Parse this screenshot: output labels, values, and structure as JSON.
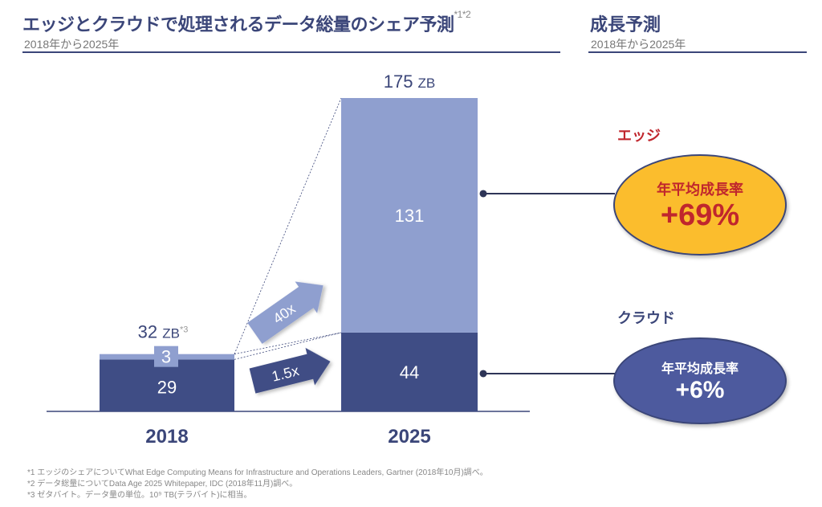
{
  "header": {
    "title": "エッジとクラウドで処理されるデータ総量のシェア予測",
    "title_sup": "*1*2",
    "subtitle": "2018年から2025年",
    "right_title": "成長予測",
    "right_subtitle": "2018年から2025年"
  },
  "chart_data": {
    "type": "bar",
    "stacked": true,
    "categories": [
      "2018",
      "2025"
    ],
    "series": [
      {
        "name": "クラウド",
        "values": [
          29,
          44
        ],
        "color": "#3f4d85"
      },
      {
        "name": "エッジ",
        "values": [
          3,
          131
        ],
        "color": "#8f9fcf"
      }
    ],
    "totals": [
      "32",
      "175"
    ],
    "unit": "ZB",
    "total_sup": "*3",
    "growth_arrows": [
      {
        "label": "40x",
        "series": "エッジ"
      },
      {
        "label": "1.5x",
        "series": "クラウド"
      }
    ]
  },
  "growth": {
    "edge": {
      "label": "エッジ",
      "cagr_label": "年平均成長率",
      "cagr_value": "+69%",
      "color": "#fbbd2d"
    },
    "cloud": {
      "label": "クラウド",
      "cagr_label": "年平均成長率",
      "cagr_value": "+6%",
      "color": "#4d5a9e"
    }
  },
  "footnotes": [
    "*1 エッジのシェアについてWhat Edge Computing Means for Infrastructure and Operations Leaders, Gartner (2018年10月)調べ。",
    "*2 データ総量についてData Age 2025 Whitepaper, IDC (2018年11月)調べ。",
    "*3 ゼタバイト。データ量の単位。10⁹ TB(テラバイト)に相当。"
  ]
}
